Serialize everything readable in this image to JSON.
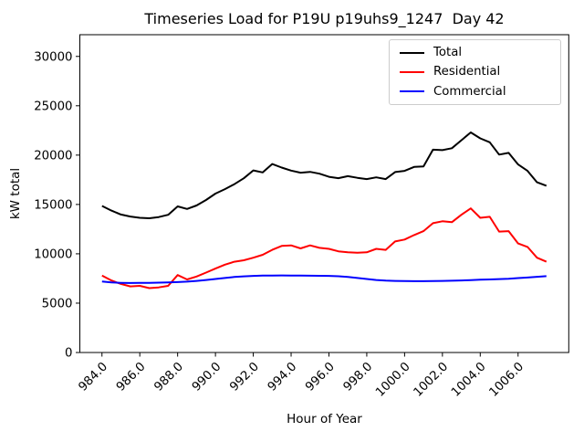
{
  "window": {
    "background": "#ffffff"
  },
  "chart_data": {
    "type": "line",
    "title": "Timeseries Load for P19U p19uhs9_1247  Day 42",
    "xlabel": "Hour of Year",
    "ylabel": "kW total",
    "xlim": [
      982.83,
      1008.68
    ],
    "ylim": [
      0,
      32200
    ],
    "grid": false,
    "legend_position": "upper right",
    "xticks": [
      984,
      986,
      988,
      990,
      992,
      994,
      996,
      998,
      1000,
      1002,
      1004,
      1006
    ],
    "xtick_labels": [
      "984.0",
      "986.0",
      "988.0",
      "990.0",
      "992.0",
      "994.0",
      "996.0",
      "998.0",
      "1000.0",
      "1002.0",
      "1004.0",
      "1006.0"
    ],
    "yticks": [
      0,
      5000,
      10000,
      15000,
      20000,
      25000,
      30000
    ],
    "ytick_labels": [
      "0",
      "5000",
      "10000",
      "15000",
      "20000",
      "25000",
      "30000"
    ],
    "x": [
      984.0,
      984.5,
      985.0,
      985.5,
      986.0,
      986.5,
      987.0,
      987.5,
      988.0,
      988.5,
      989.0,
      989.5,
      990.0,
      990.5,
      991.0,
      991.5,
      992.0,
      992.5,
      993.0,
      993.5,
      994.0,
      994.5,
      995.0,
      995.5,
      996.0,
      996.5,
      997.0,
      997.5,
      998.0,
      998.5,
      999.0,
      999.5,
      1000.0,
      1000.5,
      1001.0,
      1001.5,
      1002.0,
      1002.5,
      1003.0,
      1003.5,
      1004.0,
      1004.5,
      1005.0,
      1005.5,
      1006.0,
      1006.5,
      1007.0,
      1007.5
    ],
    "series": [
      {
        "name": "Total",
        "color": "#000000",
        "values": [
          14850,
          14380,
          13980,
          13780,
          13650,
          13600,
          13720,
          13950,
          14800,
          14550,
          14900,
          15450,
          16100,
          16550,
          17050,
          17650,
          18450,
          18250,
          19100,
          18740,
          18430,
          18220,
          18300,
          18120,
          17800,
          17660,
          17870,
          17700,
          17570,
          17750,
          17570,
          18280,
          18400,
          18800,
          18850,
          20550,
          20500,
          20700,
          21500,
          22300,
          21700,
          21300,
          20050,
          20230,
          19050,
          18400,
          17250,
          16900
        ]
      },
      {
        "name": "Residential",
        "color": "#ff0000",
        "values": [
          7800,
          7300,
          6950,
          6700,
          6750,
          6520,
          6600,
          6750,
          7850,
          7400,
          7700,
          8100,
          8500,
          8900,
          9200,
          9350,
          9600,
          9900,
          10400,
          10800,
          10850,
          10550,
          10850,
          10600,
          10500,
          10250,
          10150,
          10100,
          10150,
          10500,
          10400,
          11250,
          11450,
          11900,
          12300,
          13100,
          13300,
          13200,
          13950,
          14600,
          13650,
          13750,
          12250,
          12300,
          11050,
          10700,
          9600,
          9200
        ]
      },
      {
        "name": "Commercial",
        "color": "#0000ff",
        "values": [
          7200,
          7100,
          7060,
          7040,
          7050,
          7060,
          7080,
          7100,
          7130,
          7180,
          7250,
          7350,
          7450,
          7550,
          7650,
          7720,
          7760,
          7790,
          7800,
          7810,
          7800,
          7790,
          7780,
          7770,
          7760,
          7730,
          7650,
          7550,
          7450,
          7350,
          7280,
          7250,
          7240,
          7230,
          7230,
          7240,
          7250,
          7270,
          7300,
          7330,
          7370,
          7400,
          7440,
          7480,
          7540,
          7600,
          7670,
          7740
        ]
      }
    ]
  }
}
